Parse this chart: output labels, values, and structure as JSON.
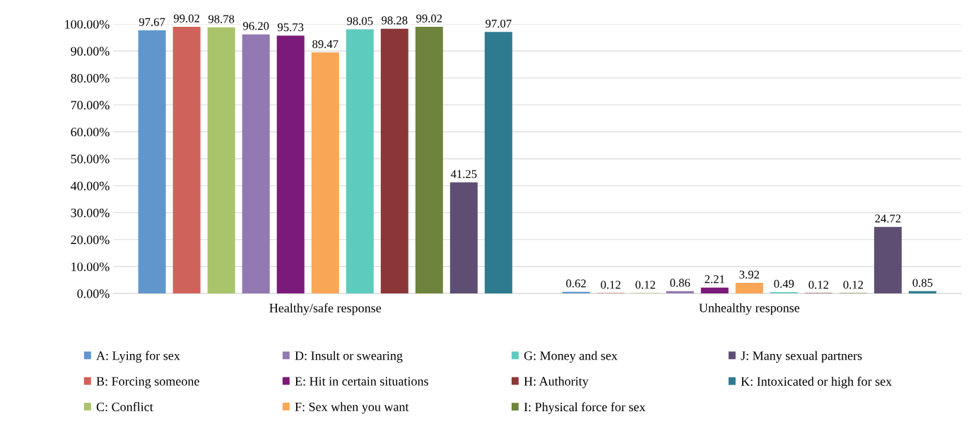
{
  "chart_data": {
    "type": "bar",
    "categories": [
      "Healthy/safe response",
      "Unhealthy response"
    ],
    "series": [
      {
        "name": "A: Lying for sex",
        "color": "#5f97cc",
        "values": [
          97.67,
          0.62
        ],
        "value_labels": [
          "97.67",
          "0.62"
        ]
      },
      {
        "name": "B: Forcing someone",
        "color": "#cf635c",
        "values": [
          99.02,
          0.12
        ],
        "value_labels": [
          "99.02",
          "0.12"
        ]
      },
      {
        "name": "C: Conflict",
        "color": "#a9c46a",
        "values": [
          98.78,
          0.12
        ],
        "value_labels": [
          "98.78",
          "0.12"
        ]
      },
      {
        "name": "D: Insult or swearing",
        "color": "#9279b1",
        "values": [
          96.2,
          0.86
        ],
        "value_labels": [
          "96.20",
          "0.86"
        ]
      },
      {
        "name": "E: Hit in certain situations",
        "color": "#7a1a79",
        "values": [
          95.73,
          2.21
        ],
        "value_labels": [
          "95.73",
          "2.21"
        ]
      },
      {
        "name": "F: Sex when you want",
        "color": "#f9a657",
        "values": [
          89.47,
          3.92
        ],
        "value_labels": [
          "89.47",
          "3.92"
        ]
      },
      {
        "name": "G: Money and sex",
        "color": "#5ecbbf",
        "values": [
          98.05,
          0.49
        ],
        "value_labels": [
          "98.05",
          "0.49"
        ]
      },
      {
        "name": "H: Authority",
        "color": "#8b3737",
        "values": [
          98.28,
          0.12
        ],
        "value_labels": [
          "98.28",
          "0.12"
        ]
      },
      {
        "name": "I: Physical force for sex",
        "color": "#6e843d",
        "values": [
          99.02,
          0.12
        ],
        "value_labels": [
          "99.02",
          "0.12"
        ]
      },
      {
        "name": "J: Many sexual partners",
        "color": "#5e4e73",
        "values": [
          41.25,
          24.72
        ],
        "value_labels": [
          "41.25",
          "24.72"
        ]
      },
      {
        "name": "K: Intoxicated or high for sex",
        "color": "#2e7b8f",
        "values": [
          97.07,
          0.85
        ],
        "value_labels": [
          "97.07",
          "0.85"
        ]
      }
    ],
    "ylim": [
      0,
      100
    ],
    "yticks": [
      {
        "value": 0,
        "label": "0.00%"
      },
      {
        "value": 10,
        "label": "10.00%"
      },
      {
        "value": 20,
        "label": "20.00%"
      },
      {
        "value": 30,
        "label": "30.00%"
      },
      {
        "value": 40,
        "label": "40.00%"
      },
      {
        "value": 50,
        "label": "50.00%"
      },
      {
        "value": 60,
        "label": "60.00%"
      },
      {
        "value": 70,
        "label": "70.00%"
      },
      {
        "value": 80,
        "label": "80.00%"
      },
      {
        "value": 90,
        "label": "90.00%"
      },
      {
        "value": 100,
        "label": "100.00%"
      }
    ],
    "grid": "y",
    "legend": "bottom"
  }
}
